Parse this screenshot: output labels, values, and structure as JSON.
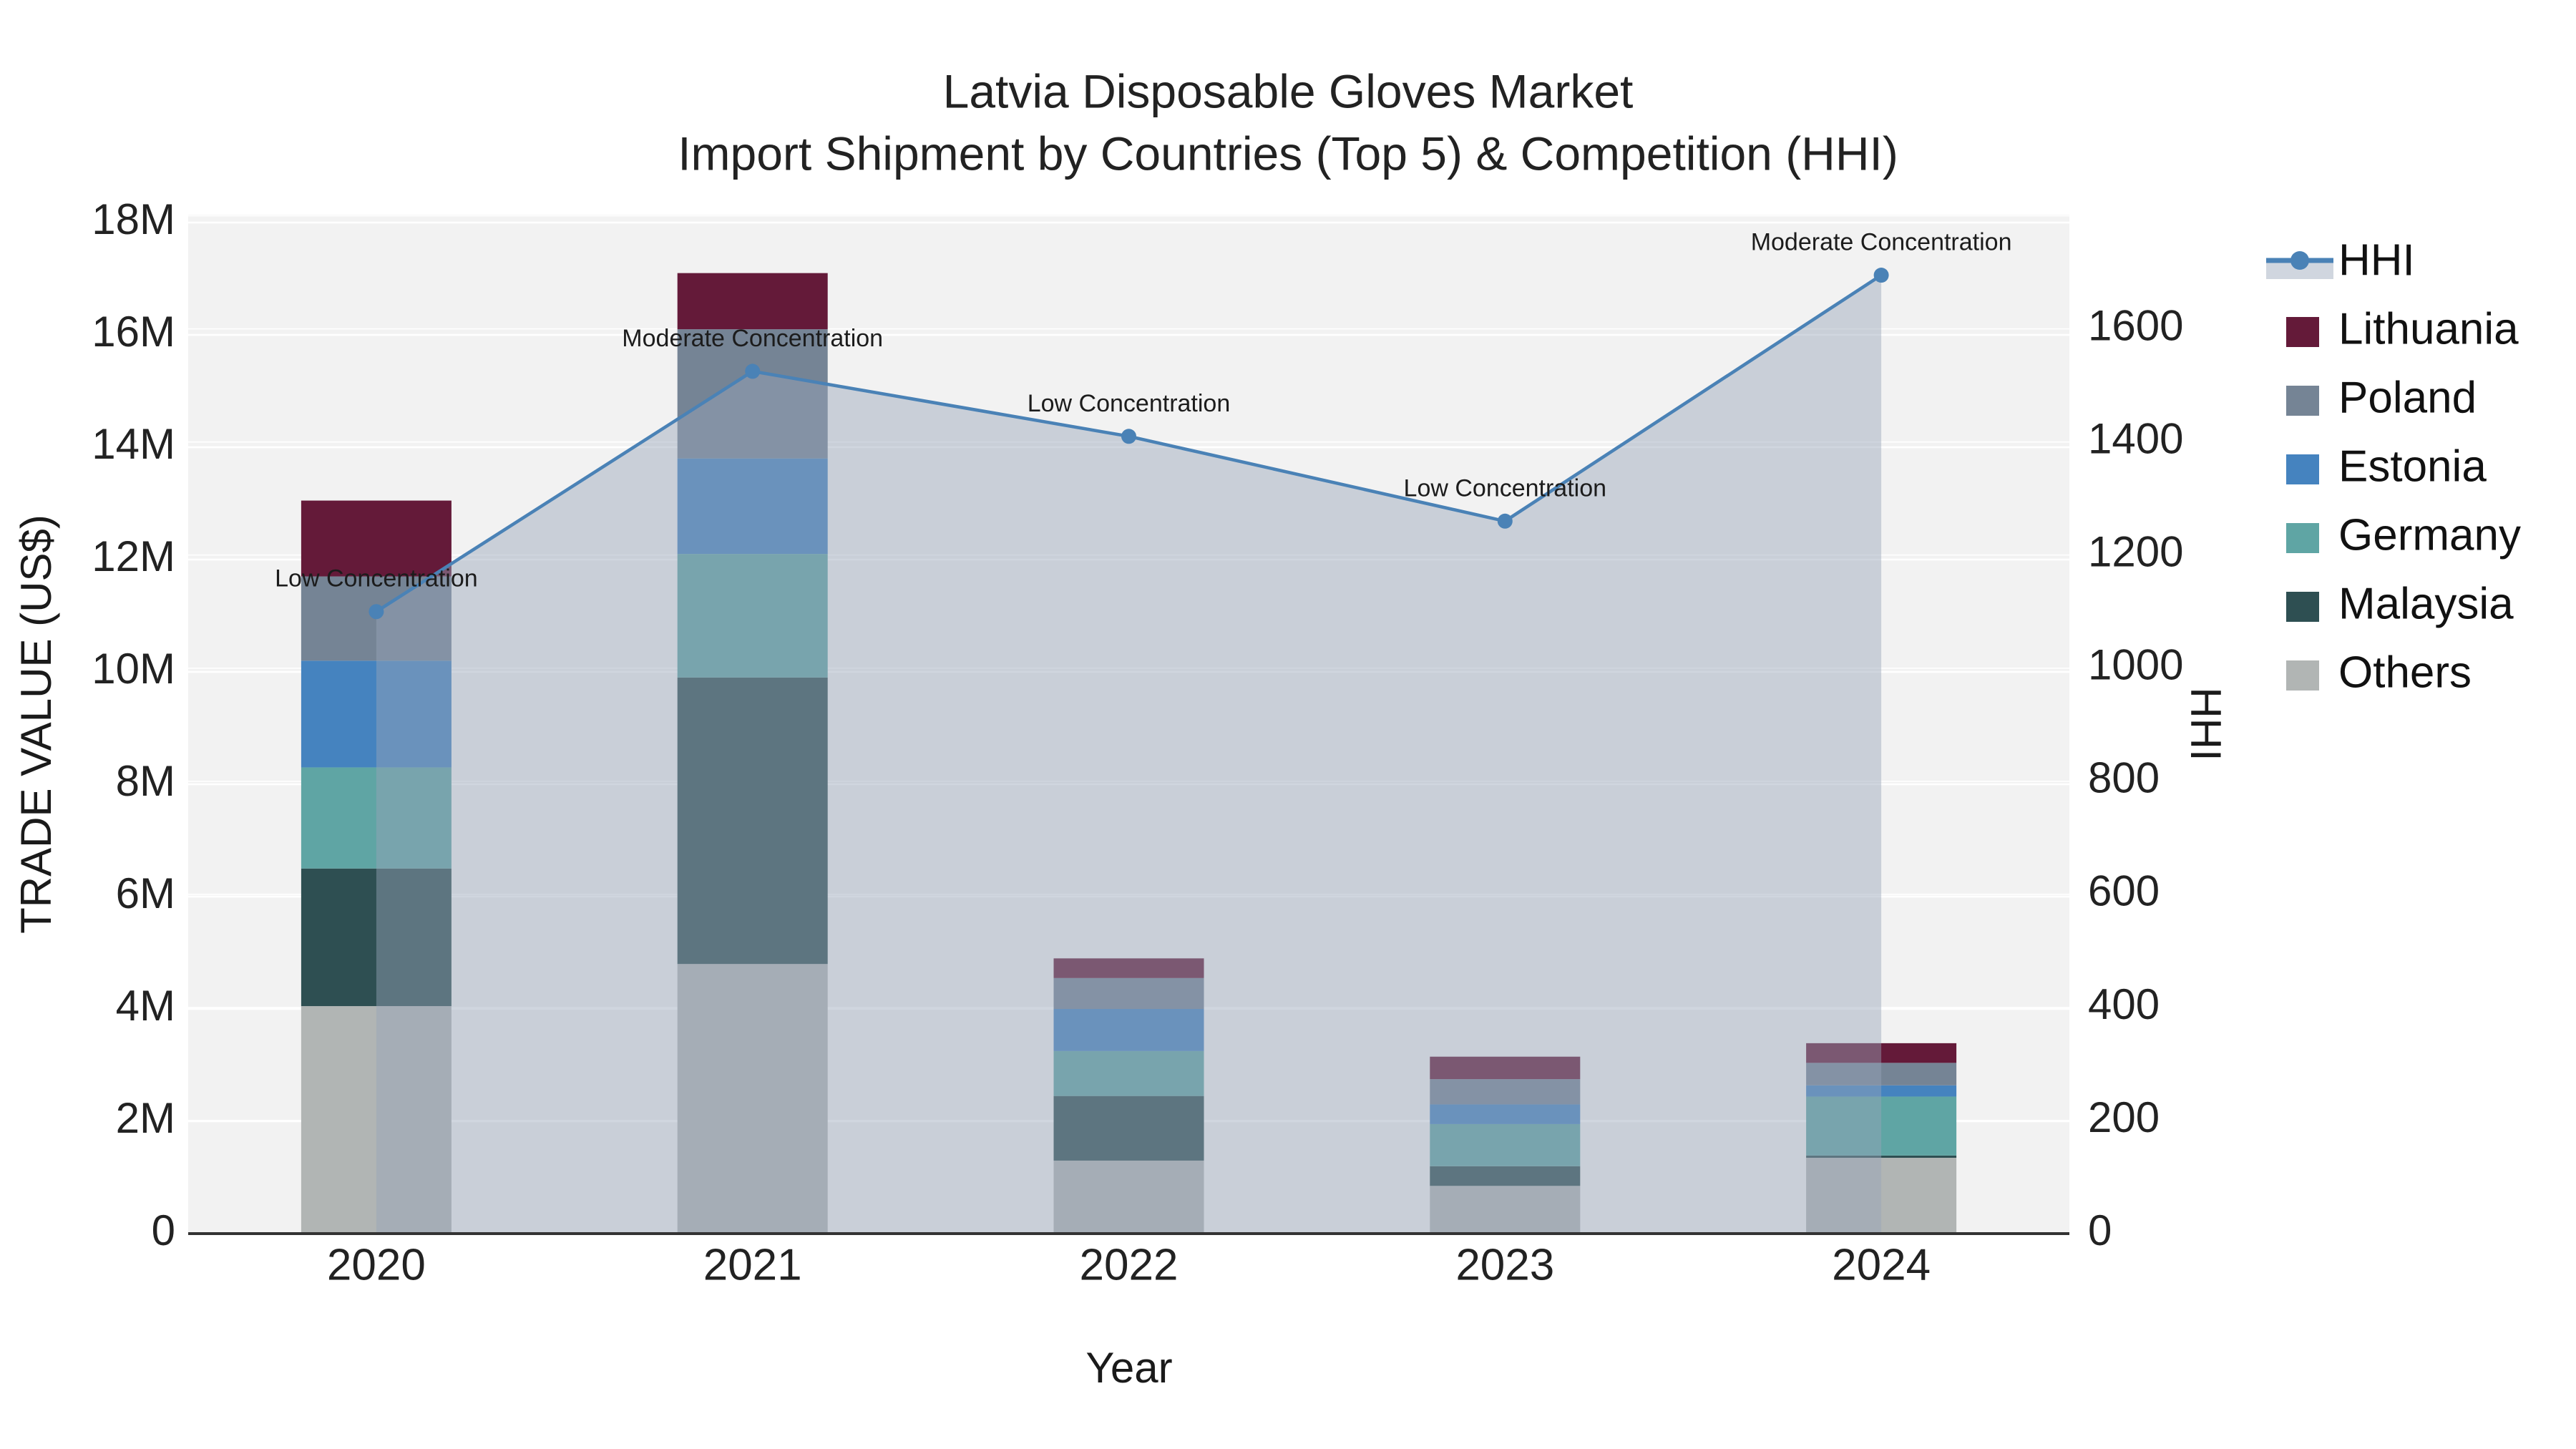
{
  "title": {
    "line1": "Latvia Disposable Gloves Market",
    "line2": "Import Shipment by Countries (Top 5) & Competition (HHI)"
  },
  "chart_data": {
    "type": "bar+line",
    "subtype": "stacked-bar with secondary-axis line and area fill",
    "categories": [
      "2020",
      "2021",
      "2022",
      "2023",
      "2024"
    ],
    "stack_order_bottom_to_top": [
      "Others",
      "Malaysia",
      "Germany",
      "Estonia",
      "Poland",
      "Lithuania"
    ],
    "series": [
      {
        "name": "Others",
        "color": "#b1b5b4",
        "values_musd": [
          4.05,
          4.8,
          1.3,
          0.85,
          1.35
        ]
      },
      {
        "name": "Malaysia",
        "color": "#2e4f52",
        "values_musd": [
          2.45,
          5.1,
          1.15,
          0.35,
          0.04
        ]
      },
      {
        "name": "Germany",
        "color": "#5fa5a4",
        "values_musd": [
          1.8,
          2.2,
          0.8,
          0.75,
          1.05
        ]
      },
      {
        "name": "Estonia",
        "color": "#4583bf",
        "values_musd": [
          1.9,
          1.7,
          0.75,
          0.35,
          0.2
        ]
      },
      {
        "name": "Poland",
        "color": "#758495",
        "values_musd": [
          1.5,
          2.3,
          0.55,
          0.45,
          0.4
        ]
      },
      {
        "name": "Lithuania",
        "color": "#641a39",
        "values_musd": [
          1.35,
          1.0,
          0.35,
          0.4,
          0.35
        ]
      }
    ],
    "line_series": {
      "name": "HHI",
      "color": "#4a82b6",
      "fill_color": "rgba(151,164,184,0.45)",
      "values": [
        1100,
        1525,
        1410,
        1260,
        1695
      ]
    },
    "annotations": [
      {
        "category": "2020",
        "text": "Low Concentration"
      },
      {
        "category": "2021",
        "text": "Moderate Concentration"
      },
      {
        "category": "2022",
        "text": "Low Concentration"
      },
      {
        "category": "2023",
        "text": "Low Concentration"
      },
      {
        "category": "2024",
        "text": "Moderate Concentration"
      }
    ],
    "xlabel": "Year",
    "ylabel_left": "TRADE VALUE (US$)",
    "ylabel_right": "HHI",
    "y_left_ticks": [
      "0",
      "2M",
      "4M",
      "6M",
      "8M",
      "10M",
      "12M",
      "14M",
      "16M",
      "18M"
    ],
    "y_left_tick_values_musd": [
      0,
      2,
      4,
      6,
      8,
      10,
      12,
      14,
      16,
      18
    ],
    "y_left_range_musd": [
      0,
      18.14
    ],
    "y_right_ticks": [
      "0",
      "200",
      "400",
      "600",
      "800",
      "1000",
      "1200",
      "1400",
      "1600"
    ],
    "y_right_tick_values": [
      0,
      200,
      400,
      600,
      800,
      1000,
      1200,
      1400,
      1600
    ],
    "y_right_range": [
      0,
      1802
    ],
    "grid": true,
    "legend_position": "right",
    "legend_order": [
      "HHI",
      "Lithuania",
      "Poland",
      "Estonia",
      "Germany",
      "Malaysia",
      "Others"
    ]
  },
  "style_colors": {
    "plot_background": "#f2f2f2",
    "gridline": "#ffffff",
    "axis_line": "#333333",
    "page_background": "#ffffff"
  }
}
